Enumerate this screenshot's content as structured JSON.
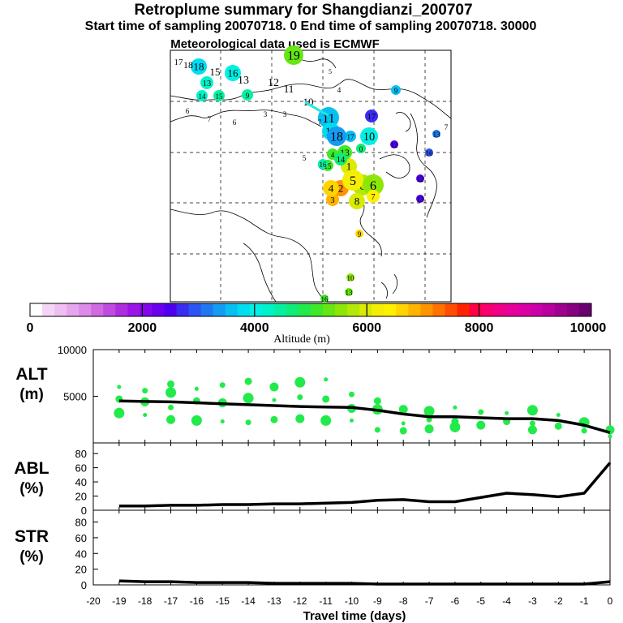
{
  "title": "Retroplume summary for Shangdianzi_200707",
  "subtitle": "Start time of sampling 20070718.    0     End time of sampling 20070718. 30000",
  "met_line": "Meteorological data used is ECMWF",
  "colorbar": {
    "ticks": [
      "0",
      "2000",
      "4000",
      "6000",
      "8000",
      "10000"
    ],
    "label": "Altitude  (m)",
    "colors": [
      "#ffffff",
      "#f5d5f7",
      "#eebff2",
      "#e6a6ee",
      "#dd8be8",
      "#cf6ae2",
      "#c04be0",
      "#ae2de1",
      "#9a16e6",
      "#8207ea",
      "#6a00ec",
      "#4e00ee",
      "#3a2cf0",
      "#2c55f2",
      "#1e78f2",
      "#129cf2",
      "#08bff2",
      "#00dcf0",
      "#00f0e4",
      "#00f2c8",
      "#06f0a0",
      "#10ec78",
      "#22ea4a",
      "#40e82a",
      "#66e612",
      "#8ee608",
      "#b4e806",
      "#d8ea06",
      "#f4ee06",
      "#fff000",
      "#ffd400",
      "#ffb400",
      "#ff9400",
      "#ff7200",
      "#ff4e00",
      "#ff2200",
      "#ff0044",
      "#f80070",
      "#ef0088",
      "#e6009a",
      "#da00a4",
      "#cc00a8",
      "#b8009e",
      "#a00090",
      "#860080",
      "#6a0070"
    ]
  },
  "map": {
    "day_labels": [
      {
        "text": "0"
      },
      {
        "text": "1"
      },
      {
        "text": "2"
      },
      {
        "text": "3"
      },
      {
        "text": "4"
      },
      {
        "text": "5"
      },
      {
        "text": "6"
      },
      {
        "text": "7"
      },
      {
        "text": "8"
      },
      {
        "text": "9"
      },
      {
        "text": "10"
      },
      {
        "text": "11"
      },
      {
        "text": "12"
      },
      {
        "text": "13"
      },
      {
        "text": "14"
      },
      {
        "text": "15"
      },
      {
        "text": "16"
      },
      {
        "text": "17"
      },
      {
        "text": "18"
      },
      {
        "text": "19"
      }
    ]
  },
  "chart_data": [
    {
      "type": "line",
      "name": "ALT",
      "ylabel": "ALT\n(m)",
      "ylim": [
        0,
        10000
      ],
      "yticks": [
        5000,
        10000
      ],
      "x": [
        -19,
        -18,
        -17,
        -16,
        -15,
        -14,
        -13,
        -12,
        -11,
        -10,
        -9,
        -8,
        -7,
        -6,
        -5,
        -4,
        -3,
        -2,
        -1,
        0
      ],
      "values": [
        4500,
        4450,
        4400,
        4300,
        4200,
        4100,
        4000,
        3900,
        3850,
        3800,
        3500,
        3100,
        2800,
        2800,
        2700,
        2600,
        2600,
        2400,
        1900,
        1100
      ],
      "scatter_color": "#22ea4a",
      "scatter_points": [
        [
          -19,
          6000
        ],
        [
          -19,
          4700
        ],
        [
          -19,
          3200
        ],
        [
          -18,
          5600
        ],
        [
          -18,
          4400
        ],
        [
          -18,
          3000
        ],
        [
          -17,
          6300
        ],
        [
          -17,
          5400
        ],
        [
          -17,
          3800
        ],
        [
          -17,
          2500
        ],
        [
          -16,
          5800
        ],
        [
          -16,
          4500
        ],
        [
          -16,
          2400
        ],
        [
          -15,
          6200
        ],
        [
          -15,
          4300
        ],
        [
          -15,
          2300
        ],
        [
          -14,
          6600
        ],
        [
          -14,
          4800
        ],
        [
          -14,
          2200
        ],
        [
          -13,
          6000
        ],
        [
          -13,
          4600
        ],
        [
          -13,
          2500
        ],
        [
          -12,
          6500
        ],
        [
          -12,
          4900
        ],
        [
          -12,
          2600
        ],
        [
          -11,
          6800
        ],
        [
          -11,
          4700
        ],
        [
          -11,
          2400
        ],
        [
          -10,
          5200
        ],
        [
          -10,
          3700
        ],
        [
          -10,
          2400
        ],
        [
          -9,
          4500
        ],
        [
          -9,
          3600
        ],
        [
          -9,
          1400
        ],
        [
          -8,
          3600
        ],
        [
          -8,
          2100
        ],
        [
          -8,
          1300
        ],
        [
          -7,
          3400
        ],
        [
          -7,
          2500
        ],
        [
          -7,
          1500
        ],
        [
          -6,
          3800
        ],
        [
          -6,
          2300
        ],
        [
          -6,
          1700
        ],
        [
          -5,
          3300
        ],
        [
          -5,
          1900
        ],
        [
          -4,
          3200
        ],
        [
          -4,
          2300
        ],
        [
          -3,
          3500
        ],
        [
          -3,
          2100
        ],
        [
          -3,
          1400
        ],
        [
          -2,
          3000
        ],
        [
          -2,
          1800
        ],
        [
          -1,
          2200
        ],
        [
          -1,
          1300
        ],
        [
          0,
          1400
        ],
        [
          0,
          700
        ]
      ]
    },
    {
      "type": "line",
      "name": "ABL",
      "ylabel": "ABL\n(%)",
      "ylim": [
        0,
        95
      ],
      "yticks": [
        0,
        20,
        40,
        60,
        80
      ],
      "x": [
        -19,
        -18,
        -17,
        -16,
        -15,
        -14,
        -13,
        -12,
        -11,
        -10,
        -9,
        -8,
        -7,
        -6,
        -5,
        -4,
        -3,
        -2,
        -1,
        0
      ],
      "values": [
        6,
        6,
        7,
        7,
        8,
        8,
        9,
        9,
        10,
        11,
        14,
        15,
        12,
        12,
        18,
        24,
        22,
        19,
        24,
        67
      ]
    },
    {
      "type": "line",
      "name": "STR",
      "ylabel": "STR\n(%)",
      "ylim": [
        0,
        95
      ],
      "yticks": [
        0,
        20,
        40,
        60,
        80
      ],
      "x": [
        -19,
        -18,
        -17,
        -16,
        -15,
        -14,
        -13,
        -12,
        -11,
        -10,
        -9,
        -8,
        -7,
        -6,
        -5,
        -4,
        -3,
        -2,
        -1,
        0
      ],
      "values": [
        5,
        4,
        4,
        3,
        3,
        3,
        2,
        2,
        2,
        2,
        1,
        1,
        1,
        1,
        1,
        1,
        1,
        1,
        1,
        4
      ]
    }
  ],
  "x_axis": {
    "ticks": [
      "-20",
      "-19",
      "-18",
      "-17",
      "-16",
      "-15",
      "-14",
      "-13",
      "-12",
      "-11",
      "-10",
      "-9",
      "-8",
      "-7",
      "-6",
      "-5",
      "-4",
      "-3",
      "-2",
      "-1",
      "0"
    ],
    "label": "Travel time (days)"
  },
  "panel_labels": {
    "alt": [
      "ALT",
      "(m)"
    ],
    "abl": [
      "ABL",
      "(%)"
    ],
    "str": [
      "STR",
      "(%)"
    ]
  },
  "alt_ytick_labels": [
    "5000",
    "10000"
  ],
  "pct_ytick_labels": [
    "0",
    "20",
    "40",
    "60",
    "80"
  ]
}
